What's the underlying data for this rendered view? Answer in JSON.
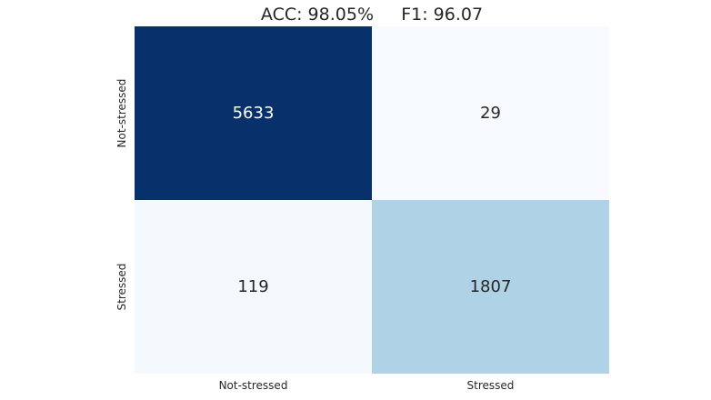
{
  "chart_data": {
    "type": "heatmap",
    "title": "ACC: 98.05%     F1: 96.07",
    "x_categories": [
      "Not-stressed",
      "Stressed"
    ],
    "y_categories": [
      "Not-stressed",
      "Stressed"
    ],
    "values": [
      [
        5633,
        29
      ],
      [
        119,
        1807
      ]
    ],
    "colormap": "Blues",
    "colorbar": false,
    "grid": false
  }
}
